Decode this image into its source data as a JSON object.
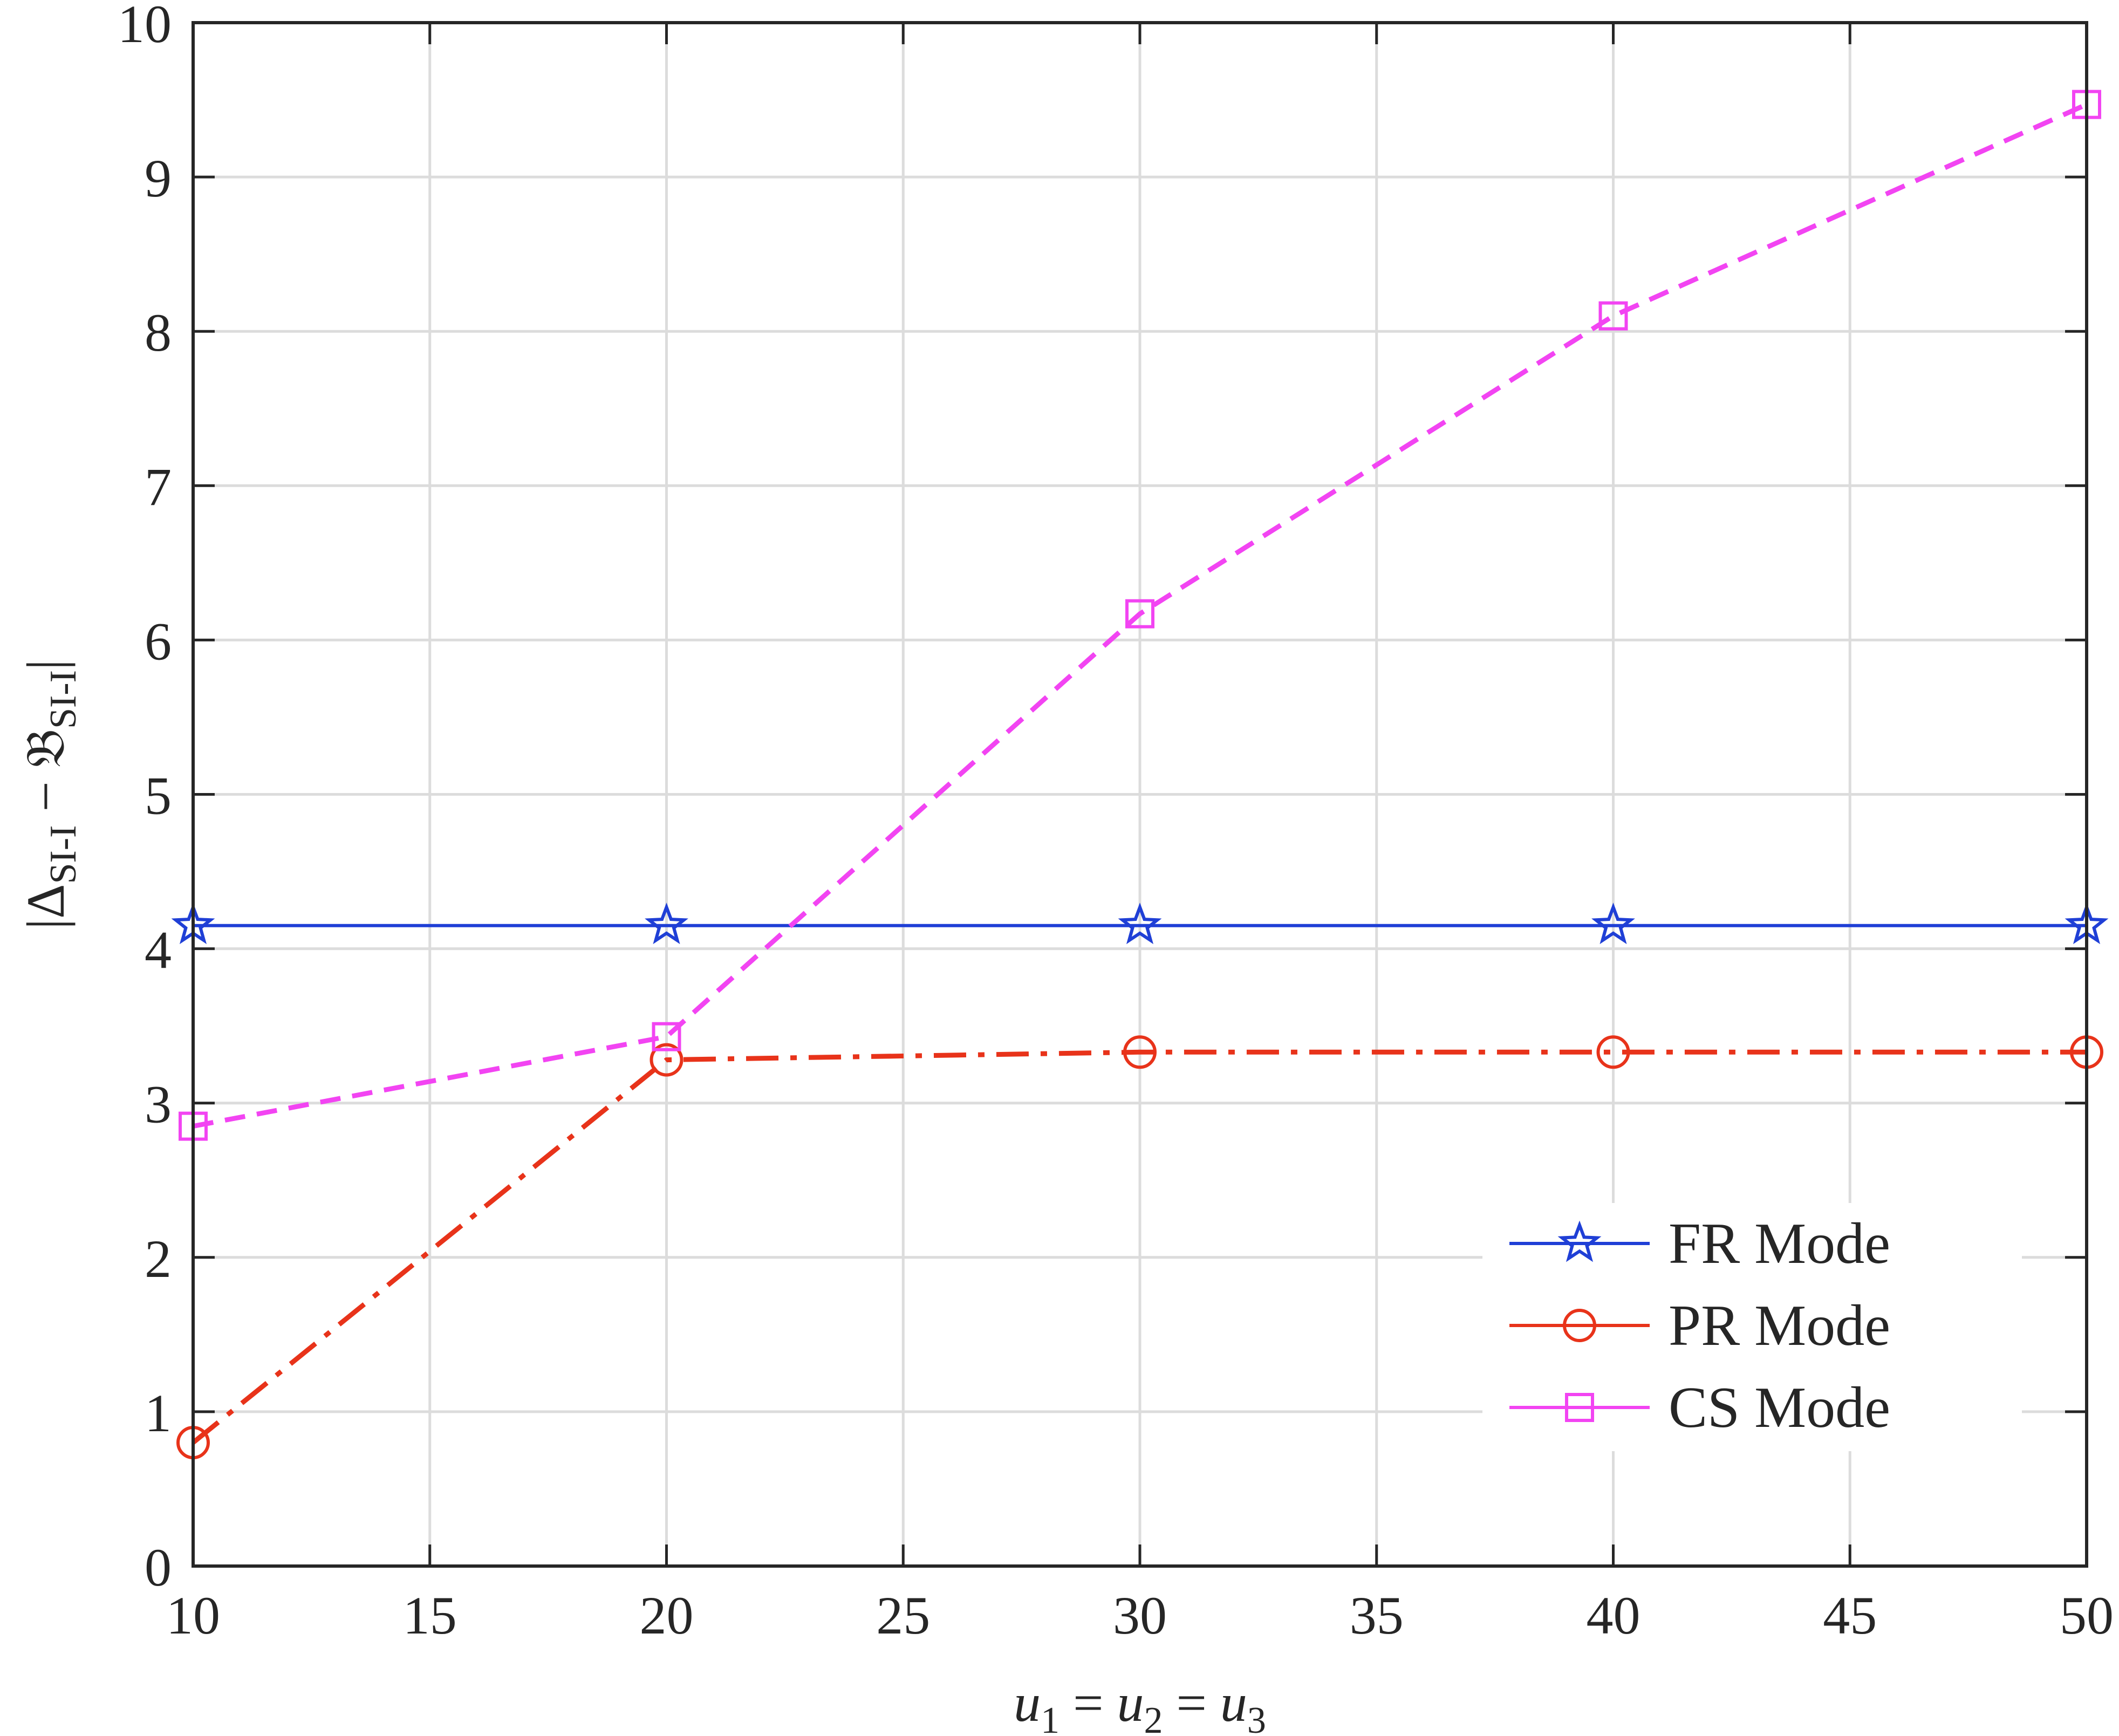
{
  "chart_data": {
    "type": "line",
    "xlabel": "u1 = u2 = u3",
    "xlabel_parts": {
      "var1": "u",
      "sub1": "1",
      "eq1": " = ",
      "var2": "u",
      "sub2": "2",
      "eq2": " = ",
      "var3": "u",
      "sub3": "3"
    },
    "ylabel": "|ΔSI-I − 𝔅SI-I|",
    "ylabel_parts": {
      "bar_left": "|",
      "delta": "Δ",
      "sub_delta": "SI-I",
      "minus": " − ",
      "frak": "𝔅",
      "sub_frak": "SI-I",
      "bar_right": "|"
    },
    "xlim": [
      10,
      50
    ],
    "ylim": [
      0,
      10
    ],
    "xticks": [
      10,
      15,
      20,
      25,
      30,
      35,
      40,
      45,
      50
    ],
    "yticks": [
      0,
      1,
      2,
      3,
      4,
      5,
      6,
      7,
      8,
      9,
      10
    ],
    "grid": true,
    "legend_position": "bottom-right",
    "x": [
      10,
      20,
      30,
      40,
      50
    ],
    "series": [
      {
        "name": "FR Mode",
        "values": [
          4.15,
          4.15,
          4.15,
          4.15,
          4.15
        ],
        "color": "#1f3fd6",
        "marker": "star",
        "dash": "solid"
      },
      {
        "name": "PR Mode",
        "values": [
          0.8,
          3.28,
          3.33,
          3.33,
          3.33
        ],
        "color": "#e8331a",
        "marker": "circle",
        "dash": "dashdot"
      },
      {
        "name": "CS Mode",
        "values": [
          2.85,
          3.43,
          6.17,
          8.1,
          9.47
        ],
        "color": "#f244f2",
        "marker": "square",
        "dash": "dashed"
      }
    ]
  }
}
